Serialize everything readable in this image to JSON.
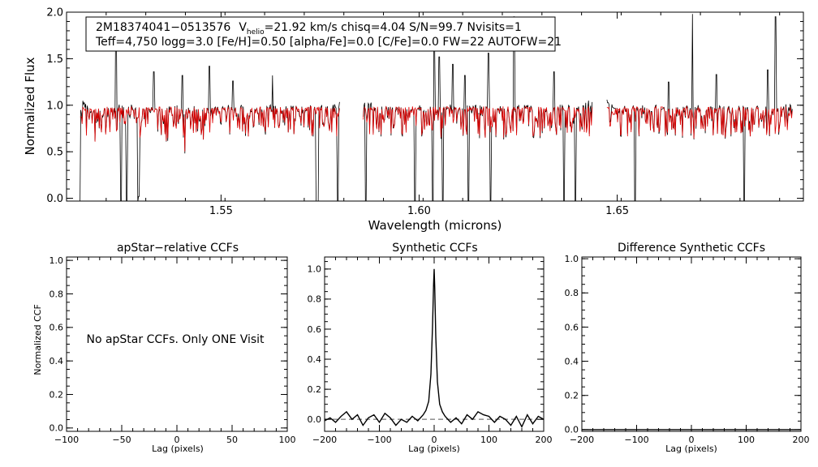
{
  "chart_data": [
    {
      "type": "line",
      "ylabel": "Normalized Flux",
      "xlabel": "Wavelength (microns)",
      "xlim": [
        1.511,
        1.697
      ],
      "ylim": [
        -0.03,
        2.0
      ],
      "xticks": [
        1.55,
        1.6,
        1.65
      ],
      "xtick_labels": [
        "1.55",
        "1.60",
        "1.65"
      ],
      "yticks": [
        0.0,
        0.5,
        1.0,
        1.5,
        2.0
      ],
      "ytick_labels": [
        "0.0",
        "0.5",
        "1.0",
        "1.5",
        "2.0"
      ],
      "annotation": {
        "line1_star": "2M18374041−0513576",
        "line1_v": "V",
        "line1_vsub": "helio",
        "line1_rest": "=21.92 km/s  chisq=4.04  S/N=99.7  Nvisits=1",
        "line2": "Teff=4,750 logg=3.0 [Fe/H]=0.50 [alpha/Fe]=0.0 [C/Fe]=0.0 FW=22 AUTOFW=21"
      },
      "series_colors": {
        "observed": "#000000",
        "synthetic": "#e00000"
      },
      "chip_ranges": [
        [
          1.5144,
          1.58
        ],
        [
          1.5859,
          1.6437
        ],
        [
          1.6474,
          1.6943
        ]
      ],
      "continuum": 0.97,
      "absorption_lines": [
        {
          "x": 1.5144,
          "depth": 0.97
        },
        {
          "x": 1.5248,
          "depth": 0.97
        },
        {
          "x": 1.5262,
          "depth": 0.95
        },
        {
          "x": 1.529,
          "depth": 0.96
        },
        {
          "x": 1.5292,
          "depth": 0.9
        },
        {
          "x": 1.574,
          "depth": 0.96
        },
        {
          "x": 1.5745,
          "depth": 0.97
        },
        {
          "x": 1.5795,
          "depth": 0.95
        },
        {
          "x": 1.5865,
          "depth": 0.96
        },
        {
          "x": 1.599,
          "depth": 0.96
        },
        {
          "x": 1.6035,
          "depth": 0.97
        },
        {
          "x": 1.606,
          "depth": 0.96
        },
        {
          "x": 1.6125,
          "depth": 0.96
        },
        {
          "x": 1.618,
          "depth": 0.97
        },
        {
          "x": 1.6365,
          "depth": 0.96
        },
        {
          "x": 1.6395,
          "depth": 0.97
        },
        {
          "x": 1.6545,
          "depth": 0.97
        },
        {
          "x": 1.682,
          "depth": 0.96
        },
        {
          "x": 1.69,
          "depth": 0.95
        }
      ],
      "emission_spikes": [
        {
          "x": 1.5235,
          "peak": 1.82
        },
        {
          "x": 1.533,
          "peak": 1.36
        },
        {
          "x": 1.5402,
          "peak": 1.32
        },
        {
          "x": 1.547,
          "peak": 1.42
        },
        {
          "x": 1.553,
          "peak": 1.26
        },
        {
          "x": 1.563,
          "peak": 1.32
        },
        {
          "x": 1.6038,
          "peak": 1.75
        },
        {
          "x": 1.605,
          "peak": 1.52
        },
        {
          "x": 1.6085,
          "peak": 1.44
        },
        {
          "x": 1.6115,
          "peak": 1.32
        },
        {
          "x": 1.6175,
          "peak": 1.56
        },
        {
          "x": 1.624,
          "peak": 1.95
        },
        {
          "x": 1.634,
          "peak": 1.36
        },
        {
          "x": 1.663,
          "peak": 1.25
        },
        {
          "x": 1.669,
          "peak": 1.98
        },
        {
          "x": 1.675,
          "peak": 1.33
        },
        {
          "x": 1.69,
          "peak": 1.95
        },
        {
          "x": 1.688,
          "peak": 1.38
        }
      ]
    },
    {
      "type": "line",
      "title": "apStar−relative CCFs",
      "xlabel": "Lag (pixels)",
      "ylabel": "Normalized CCF",
      "xlim": [
        -100,
        100
      ],
      "ylim": [
        -0.02,
        1.02
      ],
      "xticks": [
        -100,
        -50,
        0,
        50,
        100
      ],
      "xtick_labels": [
        "−100",
        "−50",
        "0",
        "50",
        "100"
      ],
      "yticks": [
        0.0,
        0.2,
        0.4,
        0.6,
        0.8,
        1.0
      ],
      "ytick_labels": [
        "0.0",
        "0.2",
        "0.4",
        "0.6",
        "0.8",
        "1.0"
      ],
      "message": "No apStar CCFs.  Only ONE Visit"
    },
    {
      "type": "line",
      "title": "Synthetic CCFs",
      "xlabel": "Lag (pixels)",
      "xlim": [
        -200,
        200
      ],
      "ylim": [
        -0.08,
        1.08
      ],
      "xticks": [
        -200,
        -100,
        0,
        100,
        200
      ],
      "xtick_labels": [
        "−200",
        "−100",
        "0",
        "100",
        "200"
      ],
      "yticks": [
        0.0,
        0.2,
        0.4,
        0.6,
        0.8,
        1.0
      ],
      "ytick_labels": [
        "0.0",
        "0.2",
        "0.4",
        "0.6",
        "0.8",
        "1.0"
      ],
      "zero_line": 0.0,
      "peak": {
        "x": 0,
        "y": 1.0
      },
      "x": [
        -200,
        -190,
        -180,
        -170,
        -160,
        -150,
        -140,
        -130,
        -120,
        -110,
        -100,
        -90,
        -80,
        -70,
        -60,
        -50,
        -40,
        -30,
        -20,
        -15,
        -10,
        -6,
        -3,
        -1,
        0,
        1,
        3,
        6,
        10,
        15,
        20,
        30,
        40,
        50,
        60,
        70,
        80,
        90,
        100,
        110,
        120,
        130,
        140,
        150,
        160,
        170,
        180,
        190,
        200
      ],
      "y": [
        -0.01,
        0.01,
        -0.02,
        0.02,
        0.05,
        0.0,
        0.03,
        -0.04,
        0.01,
        0.03,
        -0.02,
        0.04,
        0.01,
        -0.04,
        0.0,
        -0.02,
        0.02,
        -0.01,
        0.03,
        0.06,
        0.12,
        0.3,
        0.62,
        0.9,
        1.0,
        0.88,
        0.55,
        0.25,
        0.1,
        0.05,
        0.02,
        -0.02,
        0.01,
        -0.03,
        0.03,
        0.0,
        0.05,
        0.03,
        0.02,
        -0.02,
        0.02,
        0.0,
        -0.04,
        0.02,
        -0.05,
        0.03,
        -0.03,
        0.02,
        0.0
      ]
    },
    {
      "type": "line",
      "title": "Difference Synthetic CCFs",
      "xlabel": "Lag (pixels)",
      "xlim": [
        -200,
        200
      ],
      "ylim": [
        -0.01,
        1.01
      ],
      "xticks": [
        -200,
        -100,
        0,
        100,
        200
      ],
      "xtick_labels": [
        "−200",
        "−100",
        "0",
        "100",
        "200"
      ],
      "yticks": [
        0.0,
        0.2,
        0.4,
        0.6,
        0.8,
        1.0
      ],
      "ytick_labels": [
        "0.0",
        "0.2",
        "0.4",
        "0.6",
        "0.8",
        "1.0"
      ],
      "x": [
        -200,
        200
      ],
      "y": [
        0.0,
        0.0
      ]
    }
  ]
}
